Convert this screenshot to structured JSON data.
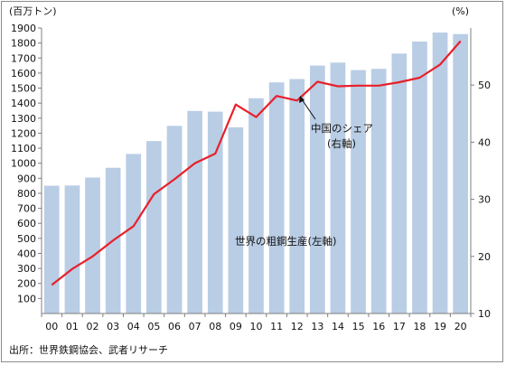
{
  "chart_data": {
    "type": "bar",
    "left_unit": "(百万トン)",
    "right_unit": "(%)",
    "categories": [
      "00",
      "01",
      "02",
      "03",
      "04",
      "05",
      "06",
      "07",
      "08",
      "09",
      "10",
      "11",
      "12",
      "13",
      "14",
      "15",
      "16",
      "17",
      "18",
      "19",
      "20"
    ],
    "series": [
      {
        "name": "世界の粗鋼生産(左軸)",
        "type": "bar",
        "axis": "left",
        "color": "#b9cde5",
        "values": [
          850,
          852,
          905,
          970,
          1062,
          1147,
          1249,
          1348,
          1343,
          1239,
          1433,
          1538,
          1560,
          1650,
          1670,
          1620,
          1628,
          1730,
          1810,
          1870,
          1860
        ]
      },
      {
        "name": "中国のシェア(右軸)",
        "type": "line",
        "axis": "right",
        "color": "#e8202a",
        "values": [
          15.0,
          17.8,
          20.0,
          22.8,
          25.3,
          30.9,
          33.5,
          36.3,
          38.0,
          46.6,
          44.4,
          48.1,
          47.3,
          50.6,
          49.8,
          49.9,
          49.9,
          50.5,
          51.3,
          53.6,
          57.7
        ]
      }
    ],
    "ylim_left": [
      0,
      1900
    ],
    "yticks_left": [
      "100",
      "200",
      "300",
      "400",
      "500",
      "600",
      "700",
      "800",
      "900",
      "1000",
      "1100",
      "1200",
      "1300",
      "1400",
      "1500",
      "1600",
      "1700",
      "1800",
      "1900"
    ],
    "ylim_right": [
      10,
      60
    ],
    "yticks_right": [
      "10",
      "20",
      "30",
      "40",
      "50"
    ],
    "annotations": {
      "bar_label": "世界の粗鋼生産(左軸)",
      "line_label_1": "中国のシェア",
      "line_label_2": "(右軸)"
    },
    "source": "出所：世界鉄鋼協会、武者リサーチ",
    "grid": false
  }
}
